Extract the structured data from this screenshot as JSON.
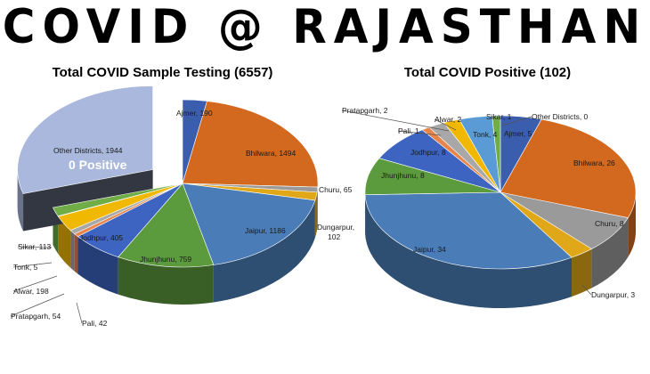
{
  "header": {
    "title": "COVID @ RAJASTHAN"
  },
  "chart_data": [
    {
      "type": "pie",
      "title": "Total COVID Sample Testing (6557)",
      "slices": [
        {
          "name": "Ajmer",
          "value": 190,
          "label": "Ajmer, 190",
          "color": "#3a5dad"
        },
        {
          "name": "Bhilwara",
          "value": 1494,
          "label": "Bhilwara, 1494",
          "color": "#d2691e"
        },
        {
          "name": "Churu",
          "value": 65,
          "label": "Churu, 65",
          "color": "#9a9a9a"
        },
        {
          "name": "Dungarpur",
          "value": 102,
          "label": "Dungarpur, 102",
          "color": "#e0a818"
        },
        {
          "name": "Jaipur",
          "value": 1186,
          "label": "Jaipur, 1186",
          "color": "#4a7db8"
        },
        {
          "name": "Jhunjhunu",
          "value": 759,
          "label": "Jhunjhunu, 759",
          "color": "#5c9a3e"
        },
        {
          "name": "Jodhpur",
          "value": 405,
          "label": "Jodhpur, 405",
          "color": "#3c64c0"
        },
        {
          "name": "Pali",
          "value": 42,
          "label": "Pali, 42",
          "color": "#e8854a"
        },
        {
          "name": "Pratapgarh",
          "value": 54,
          "label": "Pratapgarh, 54",
          "color": "#a8a8a8"
        },
        {
          "name": "Alwar",
          "value": 198,
          "label": "Alwar, 198",
          "color": "#f0b800"
        },
        {
          "name": "Tonk",
          "value": 5,
          "label": "Tonk, 5",
          "color": "#5a9bd5"
        },
        {
          "name": "Sikar",
          "value": 113,
          "label": "Sikar, 113",
          "color": "#70ad47"
        },
        {
          "name": "Other Districts",
          "value": 1944,
          "label": "Other Districts, 1944",
          "color": "#a9b8dc",
          "exploded": true,
          "note": "0 Positive"
        }
      ]
    },
    {
      "type": "pie",
      "title": "Total COVID Positive (102)",
      "slices": [
        {
          "name": "Ajmer",
          "value": 5,
          "label": "Ajmer, 5",
          "color": "#3a5dad"
        },
        {
          "name": "Bhilwara",
          "value": 26,
          "label": "Bhilwara, 26",
          "color": "#d2691e"
        },
        {
          "name": "Churu",
          "value": 8,
          "label": "Churu, 8",
          "color": "#9a9a9a"
        },
        {
          "name": "Dungarpur",
          "value": 3,
          "label": "Dungarpur, 3",
          "color": "#e0a818"
        },
        {
          "name": "Jaipur",
          "value": 34,
          "label": "Jaipur, 34",
          "color": "#4a7db8"
        },
        {
          "name": "Jhunjhunu",
          "value": 8,
          "label": "Jhunjhunu, 8",
          "color": "#5c9a3e"
        },
        {
          "name": "Jodhpur",
          "value": 8,
          "label": "Jodhpur, 8",
          "color": "#3c64c0"
        },
        {
          "name": "Pali",
          "value": 1,
          "label": "Pali, 1",
          "color": "#e8854a"
        },
        {
          "name": "Pratapgarh",
          "value": 2,
          "label": "Pratapgarh, 2",
          "color": "#a8a8a8"
        },
        {
          "name": "Alwar",
          "value": 2,
          "label": "Alwar, 2",
          "color": "#f0b800"
        },
        {
          "name": "Tonk",
          "value": 4,
          "label": "Tonk, 4",
          "color": "#5a9bd5"
        },
        {
          "name": "Sikar",
          "value": 1,
          "label": "Sikar, 1",
          "color": "#70ad47"
        },
        {
          "name": "Other Districts",
          "value": 0,
          "label": "Other Districts, 0",
          "color": "#a9b8dc"
        }
      ]
    }
  ]
}
